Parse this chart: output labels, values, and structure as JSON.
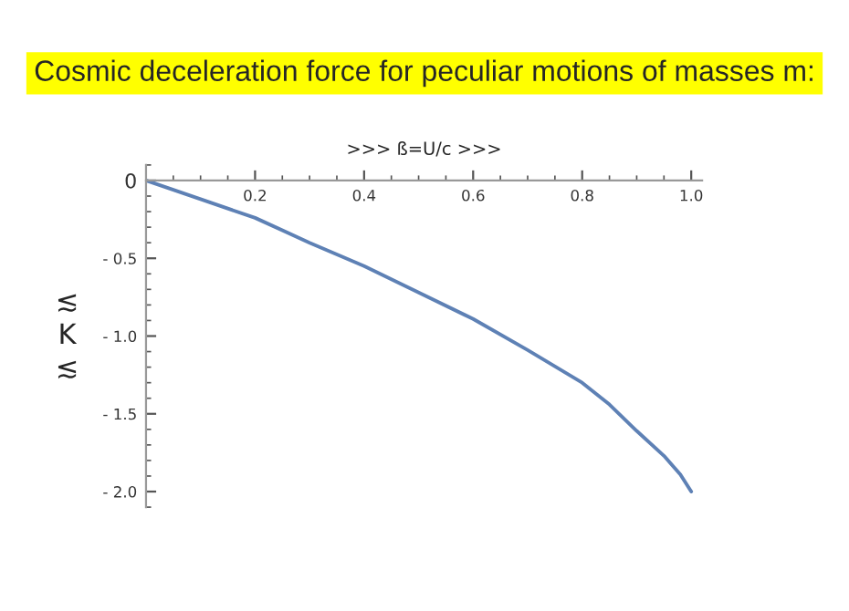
{
  "chart_data": {
    "type": "line",
    "title": "Cosmic deceleration force for peculiar motions of masses m:",
    "xlabel": ">>> ß=U/c >>>",
    "ylabel": "≲\nK\n≲",
    "x": [
      0,
      0.1,
      0.2,
      0.3,
      0.4,
      0.5,
      0.6,
      0.7,
      0.8,
      0.85,
      0.9,
      0.95,
      0.98,
      1.0
    ],
    "series": [
      {
        "color": "#5e81b5",
        "values": [
          0,
          -0.12,
          -0.24,
          -0.4,
          -0.55,
          -0.72,
          -0.89,
          -1.09,
          -1.3,
          -1.44,
          -1.61,
          -1.77,
          -1.89,
          -2.0
        ]
      }
    ],
    "xlim": [
      0,
      1.02
    ],
    "ylim": [
      -2.1,
      0.1
    ],
    "xticks": [
      0.2,
      0.4,
      0.6,
      0.8,
      {
        "value": 1.0,
        "label": "1.0"
      }
    ],
    "yticks": [
      0,
      {
        "value": -0.5,
        "label": "- 0.5"
      },
      {
        "value": -1.0,
        "label": "- 1.0"
      },
      {
        "value": -1.5,
        "label": "- 1.5"
      },
      {
        "value": -2.0,
        "label": "- 2.0"
      }
    ],
    "grid": false,
    "legend": false,
    "marker": "none",
    "line_style": "solid"
  }
}
